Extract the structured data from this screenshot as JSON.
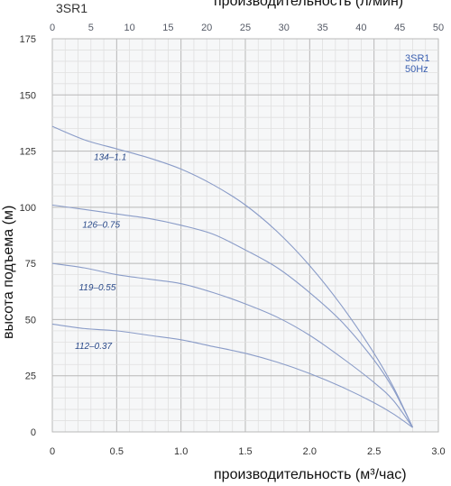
{
  "chart_data": {
    "type": "line",
    "title": "3SR1",
    "legend": {
      "model": "3SR1",
      "frequency": "50Hz",
      "placement": "top-right"
    },
    "xlabel_bottom": "производительность (м³/час)",
    "xlabel_top": "производительность (л/мин)",
    "ylabel": "высота подъема (м)",
    "xlim": [
      0,
      3.0
    ],
    "ylim": [
      0,
      175
    ],
    "xlim_top": [
      0,
      50
    ],
    "x_ticks": [
      "0",
      "0.5",
      "1.0",
      "1.5",
      "2.0",
      "2.5",
      "3.0"
    ],
    "x_tick_values": [
      0,
      0.5,
      1.0,
      1.5,
      2.0,
      2.5,
      3.0
    ],
    "y_ticks": [
      "0",
      "25",
      "50",
      "75",
      "100",
      "125",
      "150",
      "175"
    ],
    "y_tick_values": [
      0,
      25,
      50,
      75,
      100,
      125,
      150,
      175
    ],
    "top_ticks": [
      "0",
      "5",
      "10",
      "15",
      "20",
      "25",
      "30",
      "35",
      "40",
      "45",
      "50"
    ],
    "top_tick_values": [
      0,
      5,
      10,
      15,
      20,
      25,
      30,
      35,
      40,
      45,
      50
    ],
    "grid": true,
    "line_color": "#8a9cc8",
    "series": [
      {
        "name": "134–1.1",
        "x": [
          0,
          0.25,
          0.5,
          0.75,
          1.0,
          1.25,
          1.5,
          1.75,
          2.0,
          2.25,
          2.5,
          2.65,
          2.8
        ],
        "y": [
          136,
          130,
          126,
          122,
          117,
          110,
          101,
          89,
          74,
          56,
          35,
          20,
          2
        ]
      },
      {
        "name": "126–0.75",
        "x": [
          0,
          0.25,
          0.5,
          0.75,
          1.0,
          1.25,
          1.5,
          1.75,
          2.0,
          2.25,
          2.5,
          2.65,
          2.8
        ],
        "y": [
          101,
          99,
          97,
          95,
          92,
          88,
          81,
          73,
          62,
          49,
          32,
          19,
          2
        ]
      },
      {
        "name": "119–0.55",
        "x": [
          0,
          0.25,
          0.5,
          0.75,
          1.0,
          1.25,
          1.5,
          1.75,
          2.0,
          2.25,
          2.5,
          2.65,
          2.8
        ],
        "y": [
          75,
          73,
          70,
          68,
          66,
          62,
          57,
          51,
          43,
          33,
          22,
          14,
          2
        ]
      },
      {
        "name": "112–0.37",
        "x": [
          0,
          0.25,
          0.5,
          0.75,
          1.0,
          1.25,
          1.5,
          1.75,
          2.0,
          2.25,
          2.5,
          2.65,
          2.8
        ],
        "y": [
          48,
          46,
          45,
          43,
          41,
          38,
          35,
          31,
          26,
          20,
          13,
          8,
          2
        ]
      }
    ],
    "series_label_positions": [
      {
        "x": 0.45,
        "y": 121
      },
      {
        "x": 0.38,
        "y": 91
      },
      {
        "x": 0.35,
        "y": 63
      },
      {
        "x": 0.32,
        "y": 37
      }
    ]
  }
}
